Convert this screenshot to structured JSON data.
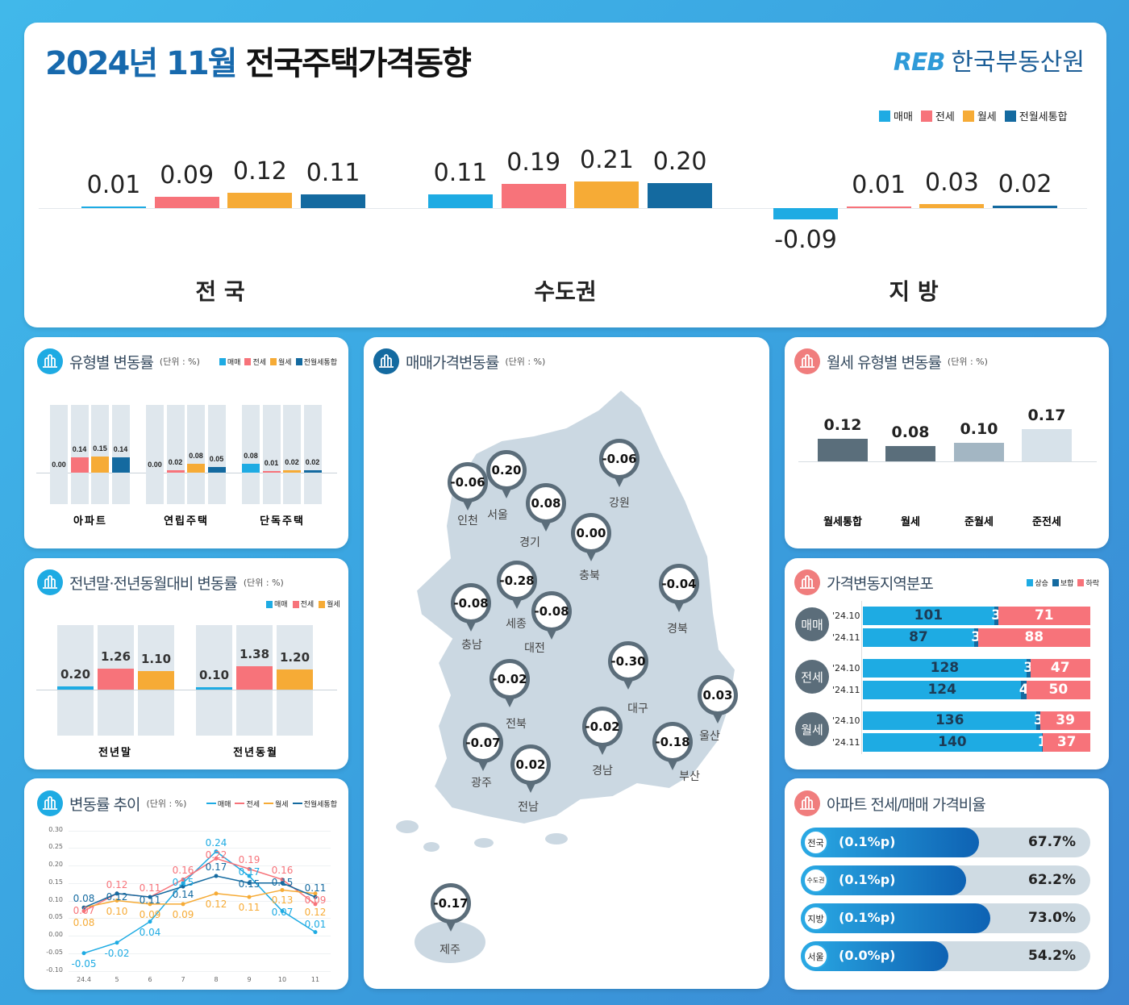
{
  "header": {
    "title_highlight": "2024년 11월",
    "title_rest": "전국주택가격동향",
    "logo_mark": "REB",
    "logo_text": "한국부동산원"
  },
  "colors": {
    "매매": "#1eabe3",
    "전세": "#f7737a",
    "월세": "#f6ab36",
    "전월세통합": "#146aa0",
    "rise": "#1eabe3",
    "flat": "#146aa0",
    "fall": "#f7737a",
    "region_badge": "#5b6d7a",
    "icon_blue": "#35b0e3",
    "icon_red": "#f07d7d"
  },
  "legend": [
    "매매",
    "전세",
    "월세",
    "전월세통합"
  ],
  "chart_data": [
    {
      "type": "bar",
      "categories": [
        "전 국",
        "수도권",
        "지 방"
      ],
      "series": [
        {
          "name": "매매",
          "values": [
            0.01,
            0.11,
            -0.09
          ]
        },
        {
          "name": "전세",
          "values": [
            0.09,
            0.19,
            0.01
          ]
        },
        {
          "name": "월세",
          "values": [
            0.12,
            0.21,
            0.03
          ]
        },
        {
          "name": "전월세통합",
          "values": [
            0.11,
            0.2,
            0.02
          ]
        }
      ]
    },
    {
      "type": "bar",
      "title": "유형별 변동률",
      "unit": "(단위 : %)",
      "categories": [
        "아파트",
        "연립주택",
        "단독주택"
      ],
      "series": [
        {
          "name": "매매",
          "values": [
            0.0,
            0.0,
            0.08
          ]
        },
        {
          "name": "전세",
          "values": [
            0.14,
            0.02,
            0.01
          ]
        },
        {
          "name": "월세",
          "values": [
            0.15,
            0.08,
            0.02
          ]
        },
        {
          "name": "전월세통합",
          "values": [
            0.14,
            0.05,
            0.02
          ]
        }
      ]
    },
    {
      "type": "bar",
      "title": "전년말·전년동월대비 변동률",
      "unit": "(단위 : %)",
      "categories": [
        "전년말",
        "전년동월"
      ],
      "series": [
        {
          "name": "매매",
          "values": [
            0.2,
            0.1
          ]
        },
        {
          "name": "전세",
          "values": [
            1.26,
            1.38
          ]
        },
        {
          "name": "월세",
          "values": [
            1.1,
            1.2
          ]
        }
      ]
    },
    {
      "type": "line",
      "title": "변동률 추이",
      "unit": "(단위 : %)",
      "x": [
        "24.4",
        "5",
        "6",
        "7",
        "8",
        "9",
        "10",
        "11"
      ],
      "ylim": [
        -0.1,
        0.3
      ],
      "yticks": [
        "0.30",
        "0.25",
        "0.20",
        "0.15",
        "0.10",
        "0.05",
        "0.00",
        "-0.05",
        "-0.10"
      ],
      "grid": true,
      "series": [
        {
          "name": "매매",
          "values": [
            -0.05,
            -0.02,
            0.04,
            0.15,
            0.24,
            0.17,
            0.07,
            0.01
          ]
        },
        {
          "name": "전세",
          "values": [
            0.07,
            0.12,
            0.11,
            0.16,
            0.22,
            0.19,
            0.16,
            0.09
          ]
        },
        {
          "name": "월세",
          "values": [
            0.08,
            0.1,
            0.09,
            0.09,
            0.12,
            0.11,
            0.13,
            0.12
          ]
        },
        {
          "name": "전월세통합",
          "values": [
            0.08,
            0.12,
            0.11,
            0.14,
            0.17,
            0.15,
            0.15,
            0.11
          ]
        }
      ]
    },
    {
      "type": "bar",
      "title": "월세 유형별 변동률",
      "unit": "(단위 : %)",
      "categories": [
        "월세통합",
        "월세",
        "준월세",
        "준전세"
      ],
      "values": [
        0.12,
        0.08,
        0.1,
        0.17
      ],
      "colors": [
        "#5a6e7b",
        "#5a6e7b",
        "#a3b6c3",
        "#d7e2ea"
      ]
    },
    {
      "type": "bar",
      "title": "가격변동지역분포",
      "stacked": true,
      "legend": [
        "상승",
        "보합",
        "하락"
      ],
      "groups": [
        {
          "name": "매매",
          "rows": [
            {
              "period": "'24.10",
              "values": [
                101,
                3,
                71
              ]
            },
            {
              "period": "'24.11",
              "values": [
                87,
                3,
                88
              ]
            }
          ]
        },
        {
          "name": "전세",
          "rows": [
            {
              "period": "'24.10",
              "values": [
                128,
                3,
                47
              ]
            },
            {
              "period": "'24.11",
              "values": [
                124,
                4,
                50
              ]
            }
          ]
        },
        {
          "name": "월세",
          "rows": [
            {
              "period": "'24.10",
              "values": [
                136,
                3,
                39
              ]
            },
            {
              "period": "'24.11",
              "values": [
                140,
                1,
                37
              ]
            }
          ]
        }
      ]
    },
    {
      "type": "bar",
      "title": "아파트 전세/매매 가격비율",
      "categories": [
        "전국",
        "수도권",
        "지방",
        "서울"
      ],
      "values": [
        67.7,
        62.2,
        73.0,
        54.2
      ],
      "value_labels": [
        "67.7%",
        "62.2%",
        "73.0%",
        "54.2%"
      ],
      "changes": [
        "(0.1%p)",
        "(0.1%p)",
        "(0.1%p)",
        "(0.0%p)"
      ]
    }
  ],
  "map": {
    "title": "매매가격변동률",
    "unit": "(단위 : %)",
    "regions": [
      {
        "name": "인천",
        "value": "-0.06"
      },
      {
        "name": "서울",
        "value": "0.20"
      },
      {
        "name": "경기",
        "value": "0.08"
      },
      {
        "name": "강원",
        "value": "-0.06"
      },
      {
        "name": "충북",
        "value": "0.00"
      },
      {
        "name": "세종",
        "value": "-0.28"
      },
      {
        "name": "충남",
        "value": "-0.08"
      },
      {
        "name": "대전",
        "value": "-0.08"
      },
      {
        "name": "경북",
        "value": "-0.04"
      },
      {
        "name": "대구",
        "value": "-0.30"
      },
      {
        "name": "전북",
        "value": "-0.02"
      },
      {
        "name": "울산",
        "value": "0.03"
      },
      {
        "name": "광주",
        "value": "-0.07"
      },
      {
        "name": "경남",
        "value": "-0.02"
      },
      {
        "name": "부산",
        "value": "-0.18"
      },
      {
        "name": "전남",
        "value": "0.02"
      },
      {
        "name": "제주",
        "value": "-0.17"
      }
    ]
  }
}
